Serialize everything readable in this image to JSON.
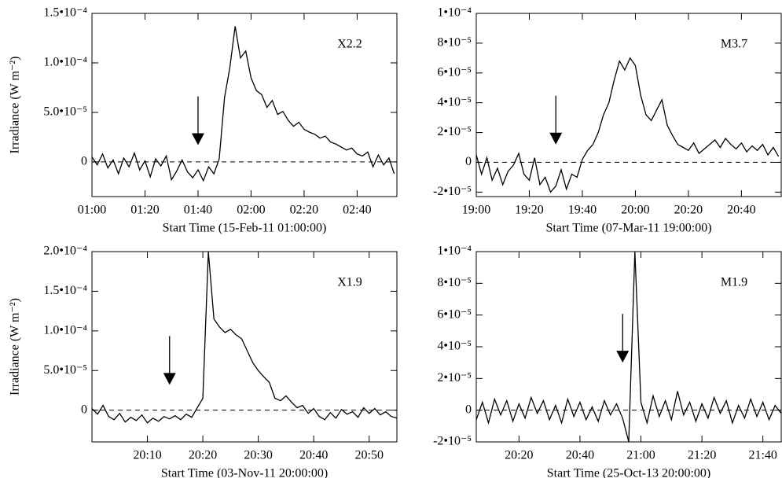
{
  "chart_data": [
    {
      "type": "line",
      "annotation": "X2.2",
      "xlabel": "Start Time (15-Feb-11 01:00:00)",
      "ylabel": "Irradiance (W m⁻²)",
      "color": "#000000",
      "xlim": [
        "01:00",
        "02:55"
      ],
      "xticks": [
        "01:00",
        "01:20",
        "01:40",
        "02:00",
        "02:20",
        "02:40"
      ],
      "ylim": [
        -3.5e-05,
        0.00015
      ],
      "yticks": [
        0,
        {
          "value": 5e-05,
          "label": "5.0•10⁻⁵"
        },
        {
          "value": 0.0001,
          "label": "1.0•10⁻⁴"
        },
        {
          "value": 0.00015,
          "label": "1.5•10⁻⁴"
        }
      ],
      "reference_line": 0,
      "arrow": {
        "x": "01:40",
        "y": 1.7e-05
      },
      "x": [
        "01:00",
        "01:02",
        "01:04",
        "01:06",
        "01:08",
        "01:10",
        "01:12",
        "01:14",
        "01:16",
        "01:18",
        "01:20",
        "01:22",
        "01:24",
        "01:26",
        "01:28",
        "01:30",
        "01:32",
        "01:34",
        "01:36",
        "01:38",
        "01:40",
        "01:42",
        "01:44",
        "01:46",
        "01:48",
        "01:50",
        "01:52",
        "01:54",
        "01:56",
        "01:58",
        "02:00",
        "02:02",
        "02:04",
        "02:06",
        "02:08",
        "02:10",
        "02:12",
        "02:14",
        "02:16",
        "02:18",
        "02:20",
        "02:22",
        "02:24",
        "02:26",
        "02:28",
        "02:30",
        "02:32",
        "02:34",
        "02:36",
        "02:38",
        "02:40",
        "02:42",
        "02:44",
        "02:46",
        "02:48",
        "02:50",
        "02:52",
        "02:54"
      ],
      "values": [
        5e-06,
        -3e-06,
        8e-06,
        -6e-06,
        2e-06,
        -1.2e-05,
        4e-06,
        -5e-06,
        9e-06,
        -8e-06,
        1e-06,
        -1.5e-05,
        3e-06,
        -4e-06,
        6e-06,
        -1.8e-05,
        -9e-06,
        2e-06,
        -1e-05,
        -1.6e-05,
        -8e-06,
        -1.9e-05,
        -5e-06,
        -1.2e-05,
        3e-06,
        6.5e-05,
        9.5e-05,
        0.000137,
        0.000105,
        0.000112,
        8.5e-05,
        7.2e-05,
        6.8e-05,
        5.5e-05,
        6.2e-05,
        4.8e-05,
        5.1e-05,
        4.2e-05,
        3.6e-05,
        4e-05,
        3.3e-05,
        3e-05,
        2.8e-05,
        2.4e-05,
        2.6e-05,
        2e-05,
        1.8e-05,
        1.5e-05,
        1.2e-05,
        1.4e-05,
        8e-06,
        6e-06,
        1e-05,
        -5e-06,
        7e-06,
        -3e-06,
        4e-06,
        -1.2e-05
      ]
    },
    {
      "type": "line",
      "annotation": "M3.7",
      "xlabel": "Start Time (07-Mar-11 19:00:00)",
      "color": "#000000",
      "xlim": [
        "19:00",
        "20:55"
      ],
      "xticks": [
        "19:00",
        "19:20",
        "19:40",
        "20:00",
        "20:20",
        "20:40"
      ],
      "ylim": [
        -2.3e-05,
        0.0001
      ],
      "yticks": [
        {
          "value": -2e-05,
          "label": "-2•10⁻⁵"
        },
        0,
        {
          "value": 2e-05,
          "label": "2•10⁻⁵"
        },
        {
          "value": 4e-05,
          "label": "4•10⁻⁵"
        },
        {
          "value": 6e-05,
          "label": "6•10⁻⁵"
        },
        {
          "value": 8e-05,
          "label": "8•10⁻⁵"
        },
        {
          "value": 0.0001,
          "label": "1•10⁻⁴"
        }
      ],
      "reference_line": 0,
      "arrow": {
        "x": "19:30",
        "y": 1.2e-05
      },
      "x": [
        "19:00",
        "19:02",
        "19:04",
        "19:06",
        "19:08",
        "19:10",
        "19:12",
        "19:14",
        "19:16",
        "19:18",
        "19:20",
        "19:22",
        "19:24",
        "19:26",
        "19:28",
        "19:30",
        "19:32",
        "19:34",
        "19:36",
        "19:38",
        "19:40",
        "19:42",
        "19:44",
        "19:46",
        "19:48",
        "19:50",
        "19:52",
        "19:54",
        "19:56",
        "19:58",
        "20:00",
        "20:02",
        "20:04",
        "20:06",
        "20:08",
        "20:10",
        "20:12",
        "20:14",
        "20:16",
        "20:18",
        "20:20",
        "20:22",
        "20:24",
        "20:26",
        "20:28",
        "20:30",
        "20:32",
        "20:34",
        "20:36",
        "20:38",
        "20:40",
        "20:42",
        "20:44",
        "20:46",
        "20:48",
        "20:50",
        "20:52",
        "20:54"
      ],
      "values": [
        5e-06,
        -8e-06,
        3e-06,
        -1.2e-05,
        -4e-06,
        -1.5e-05,
        -6e-06,
        -2e-06,
        6e-06,
        -8e-06,
        -1.2e-05,
        3e-06,
        -1.5e-05,
        -1e-05,
        -2e-05,
        -1.6e-05,
        -5e-06,
        -1.8e-05,
        -8e-06,
        -1e-05,
        2e-06,
        8e-06,
        1.2e-05,
        2e-05,
        3.2e-05,
        4e-05,
        5.5e-05,
        6.8e-05,
        6.2e-05,
        7e-05,
        6.5e-05,
        4.5e-05,
        3.2e-05,
        2.8e-05,
        3.5e-05,
        4.2e-05,
        2.5e-05,
        1.8e-05,
        1.2e-05,
        1e-05,
        8e-06,
        1.3e-05,
        6e-06,
        9e-06,
        1.2e-05,
        1.5e-05,
        1e-05,
        1.6e-05,
        1.2e-05,
        9e-06,
        1.3e-05,
        7e-06,
        1.1e-05,
        8e-06,
        1.2e-05,
        5e-06,
        1e-05,
        4e-06
      ]
    },
    {
      "type": "line",
      "annotation": "X1.9",
      "xlabel": "Start Time (03-Nov-11 20:00:00)",
      "ylabel": "Irradiance (W m⁻²)",
      "color": "#000000",
      "xlim": [
        "20:00",
        "20:55"
      ],
      "xticks": [
        "20:10",
        "20:20",
        "20:30",
        "20:40",
        "20:50"
      ],
      "ylim": [
        -4e-05,
        0.0002
      ],
      "yticks": [
        0,
        {
          "value": 5e-05,
          "label": "5.0•10⁻⁵"
        },
        {
          "value": 0.0001,
          "label": "1.0•10⁻⁴"
        },
        {
          "value": 0.00015,
          "label": "1.5•10⁻⁴"
        },
        {
          "value": 0.0002,
          "label": "2.0•10⁻⁴"
        }
      ],
      "reference_line": 0,
      "arrow": {
        "x": "20:14",
        "y": 3.2e-05
      },
      "x": [
        "20:00",
        "20:01",
        "20:02",
        "20:03",
        "20:04",
        "20:05",
        "20:06",
        "20:07",
        "20:08",
        "20:09",
        "20:10",
        "20:11",
        "20:12",
        "20:13",
        "20:14",
        "20:15",
        "20:16",
        "20:17",
        "20:18",
        "20:19",
        "20:20",
        "20:21",
        "20:22",
        "20:23",
        "20:24",
        "20:25",
        "20:26",
        "20:27",
        "20:28",
        "20:29",
        "20:30",
        "20:31",
        "20:32",
        "20:33",
        "20:34",
        "20:35",
        "20:36",
        "20:37",
        "20:38",
        "20:39",
        "20:40",
        "20:41",
        "20:42",
        "20:43",
        "20:44",
        "20:45",
        "20:46",
        "20:47",
        "20:48",
        "20:49",
        "20:50",
        "20:51",
        "20:52",
        "20:53",
        "20:54",
        "20:55"
      ],
      "values": [
        2e-06,
        -5e-06,
        6e-06,
        -8e-06,
        -1.2e-05,
        -4e-06,
        -1.5e-05,
        -9e-06,
        -1.3e-05,
        -6e-06,
        -1.6e-05,
        -1e-05,
        -1.4e-05,
        -8e-06,
        -1.1e-05,
        -7e-06,
        -1.2e-05,
        -5e-06,
        -9e-06,
        3e-06,
        1.5e-05,
        0.0002,
        0.000115,
        0.000105,
        9.8e-05,
        0.000102,
        9.5e-05,
        9e-05,
        7.5e-05,
        6e-05,
        5e-05,
        4.2e-05,
        3.5e-05,
        1.5e-05,
        1.2e-05,
        1.8e-05,
        1e-05,
        3e-06,
        6e-06,
        -4e-06,
        2e-06,
        -8e-06,
        -1.2e-05,
        -3e-06,
        -1e-05,
        1e-06,
        -5e-06,
        -2e-06,
        -9e-06,
        3e-06,
        -4e-06,
        2e-06,
        -6e-06,
        -2e-06,
        -8e-06,
        -1e-05
      ]
    },
    {
      "type": "line",
      "annotation": "M1.9",
      "xlabel": "Start Time (25-Oct-13 20:00:00)",
      "color": "#000000",
      "xlim": [
        "20:06",
        "21:46"
      ],
      "xticks": [
        "20:20",
        "20:40",
        "21:00",
        "21:20",
        "21:40"
      ],
      "ylim": [
        -2e-05,
        0.0001
      ],
      "yticks": [
        {
          "value": -2e-05,
          "label": "-2•10⁻⁵"
        },
        0,
        {
          "value": 2e-05,
          "label": "2•10⁻⁵"
        },
        {
          "value": 4e-05,
          "label": "4•10⁻⁵"
        },
        {
          "value": 6e-05,
          "label": "6•10⁻⁵"
        },
        {
          "value": 8e-05,
          "label": "8•10⁻⁵"
        },
        {
          "value": 0.0001,
          "label": "1•10⁻⁴"
        }
      ],
      "reference_line": 0,
      "arrow": {
        "x": "20:54",
        "y": 3e-05
      },
      "x": [
        "20:06",
        "20:08",
        "20:10",
        "20:12",
        "20:14",
        "20:16",
        "20:18",
        "20:20",
        "20:22",
        "20:24",
        "20:26",
        "20:28",
        "20:30",
        "20:32",
        "20:34",
        "20:36",
        "20:38",
        "20:40",
        "20:42",
        "20:44",
        "20:46",
        "20:48",
        "20:50",
        "20:52",
        "20:54",
        "20:56",
        "20:58",
        "21:00",
        "21:02",
        "21:04",
        "21:06",
        "21:08",
        "21:10",
        "21:12",
        "21:14",
        "21:16",
        "21:18",
        "21:20",
        "21:22",
        "21:24",
        "21:26",
        "21:28",
        "21:30",
        "21:32",
        "21:34",
        "21:36",
        "21:38",
        "21:40",
        "21:42",
        "21:44",
        "21:46"
      ],
      "values": [
        -6e-06,
        5e-06,
        -8e-06,
        7e-06,
        -3e-06,
        6e-06,
        -7e-06,
        4e-06,
        -5e-06,
        8e-06,
        -2e-06,
        6e-06,
        -6e-06,
        3e-06,
        -8e-06,
        7e-06,
        -4e-06,
        5e-06,
        -6e-06,
        2e-06,
        -7e-06,
        6e-06,
        -3e-06,
        4e-06,
        -5e-06,
        -2e-05,
        0.0001,
        5e-06,
        -8e-06,
        9e-06,
        -4e-06,
        6e-06,
        -6e-06,
        1.2e-05,
        -3e-06,
        5e-06,
        -7e-06,
        4e-06,
        -5e-06,
        8e-06,
        -2e-06,
        6e-06,
        -8e-06,
        3e-06,
        -5e-06,
        7e-06,
        -4e-06,
        5e-06,
        -6e-06,
        3e-06,
        -2e-06
      ]
    }
  ]
}
